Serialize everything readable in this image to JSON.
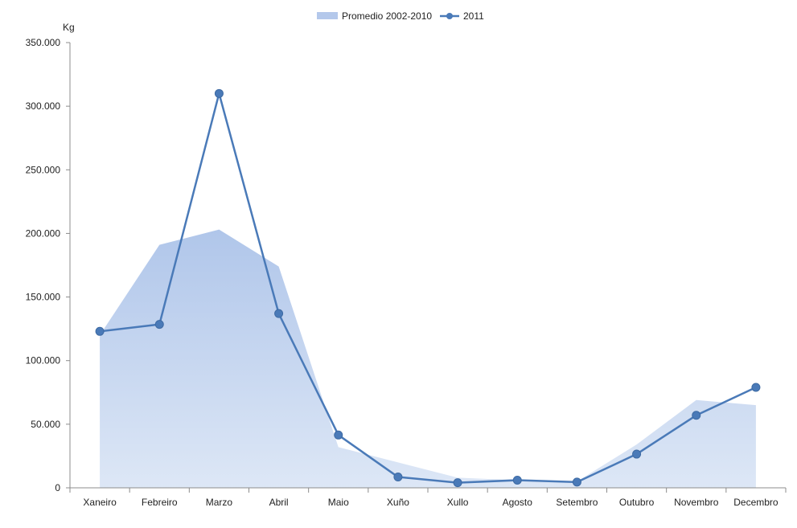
{
  "chart_data": {
    "type": "area",
    "ylabel": "Kg",
    "ylim": [
      0,
      350000
    ],
    "yticks": [
      0,
      50000,
      100000,
      150000,
      200000,
      250000,
      300000,
      350000
    ],
    "ytick_labels": [
      "0",
      "50.000",
      "100.000",
      "150.000",
      "200.000",
      "250.000",
      "300.000",
      "350.000"
    ],
    "categories": [
      "Xaneiro",
      "Febreiro",
      "Marzo",
      "Abril",
      "Maio",
      "Xuño",
      "Xullo",
      "Agosto",
      "Setembro",
      "Outubro",
      "Novembro",
      "Decembro"
    ],
    "legend_position": "top-center",
    "grid": false,
    "series": [
      {
        "name": "Promedio 2002-2010",
        "type": "area",
        "color": "#b4c8eb",
        "values": [
          120000,
          191000,
          203000,
          174000,
          32000,
          20000,
          8000,
          6000,
          5000,
          34000,
          69000,
          65000
        ]
      },
      {
        "name": "2011",
        "type": "line",
        "color": "#4a7ab8",
        "values": [
          123000,
          128500,
          310000,
          137000,
          41500,
          8500,
          4000,
          6000,
          4500,
          26500,
          57000,
          79000
        ]
      }
    ]
  }
}
